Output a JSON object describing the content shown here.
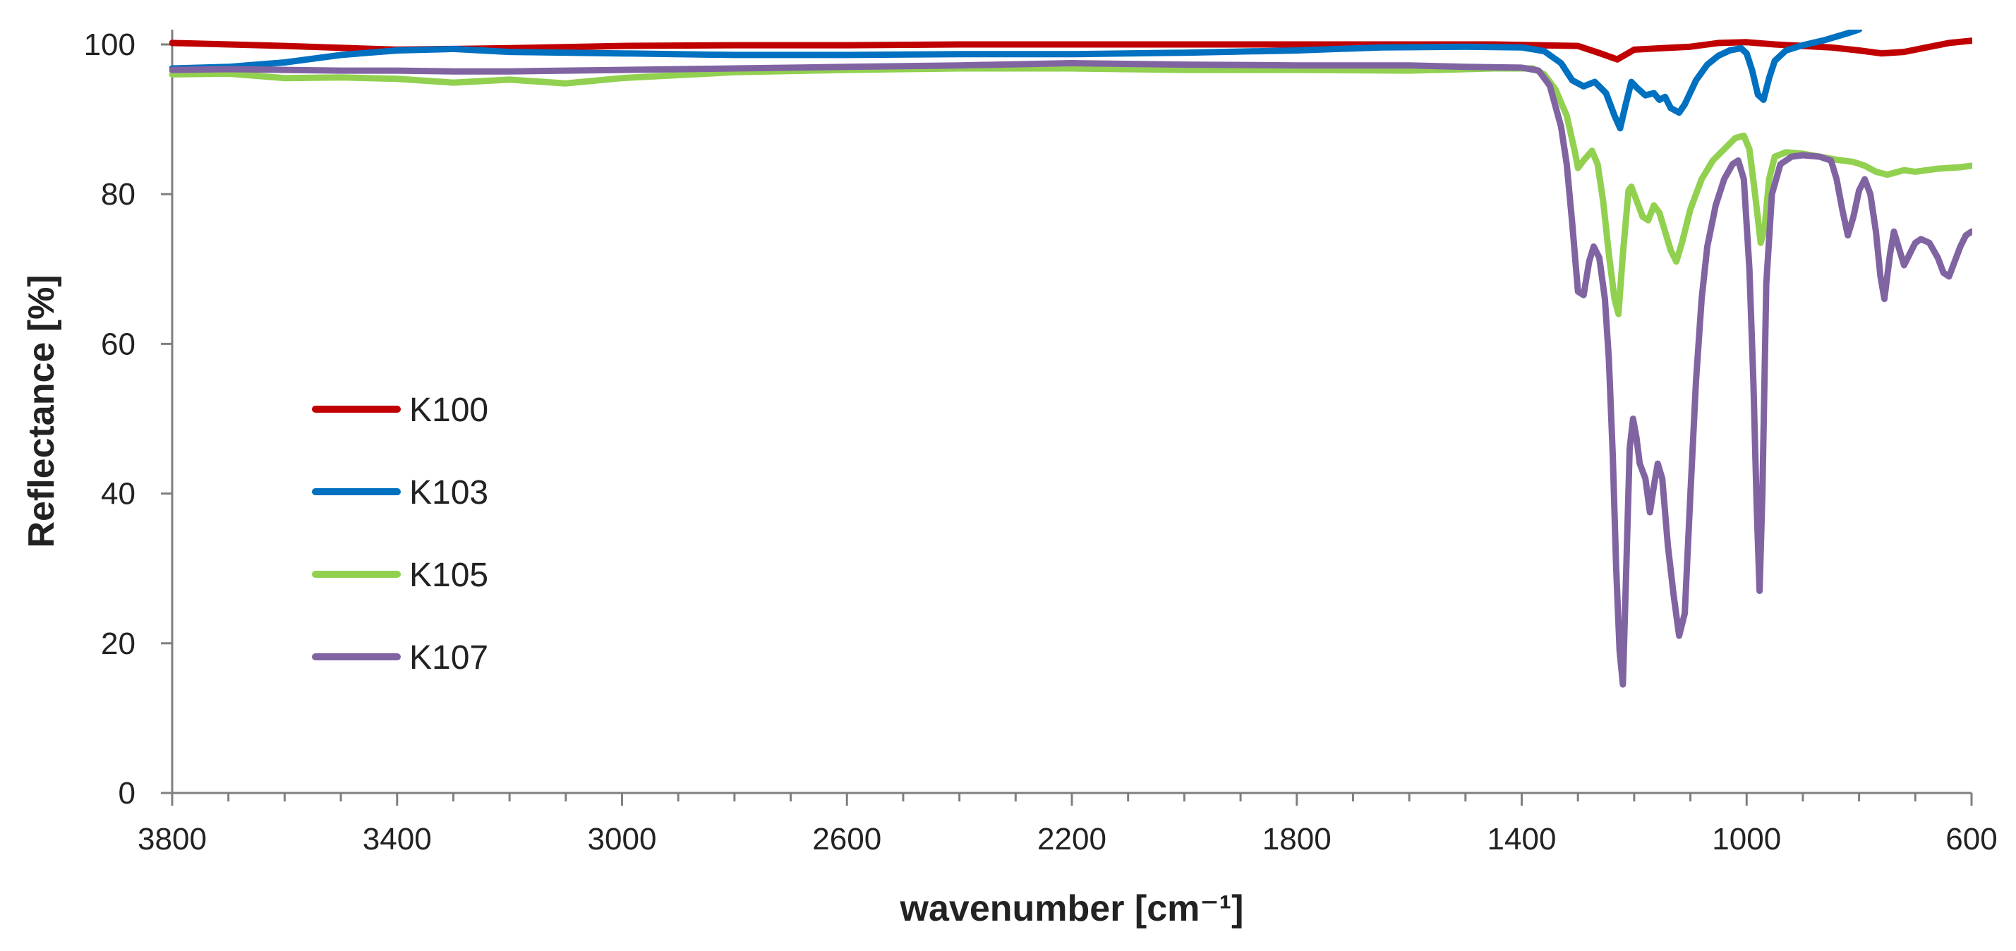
{
  "chart_data": {
    "type": "line",
    "xlabel": "wavenumber [cm⁻¹]",
    "ylabel": "Reflectance [%]",
    "xlim": [
      3800,
      600
    ],
    "ylim": [
      0,
      100
    ],
    "x_reversed": true,
    "x_ticks": [
      3800,
      3400,
      3000,
      2600,
      2200,
      1800,
      1400,
      1000,
      600
    ],
    "y_ticks": [
      0,
      20,
      40,
      60,
      80,
      100
    ],
    "x_tick_labels": [
      "3800",
      "3400",
      "3000",
      "2600",
      "2200",
      "1800",
      "1400",
      "1000",
      "600"
    ],
    "y_tick_labels": [
      "0",
      "20",
      "40",
      "60",
      "80",
      "100"
    ],
    "grid": false,
    "legend_position": "left",
    "series": [
      {
        "name": "K100",
        "color": "#C00000",
        "points": [
          [
            3800,
            100.2
          ],
          [
            3600,
            99.8
          ],
          [
            3400,
            99.3
          ],
          [
            3200,
            99.5
          ],
          [
            3000,
            99.8
          ],
          [
            2800,
            99.9
          ],
          [
            2600,
            99.9
          ],
          [
            2400,
            100.0
          ],
          [
            2200,
            100.0
          ],
          [
            2000,
            100.0
          ],
          [
            1800,
            100.0
          ],
          [
            1600,
            100.0
          ],
          [
            1450,
            100.0
          ],
          [
            1300,
            99.8
          ],
          [
            1260,
            98.8
          ],
          [
            1230,
            98.0
          ],
          [
            1200,
            99.3
          ],
          [
            1150,
            99.5
          ],
          [
            1100,
            99.7
          ],
          [
            1050,
            100.2
          ],
          [
            1000,
            100.3
          ],
          [
            950,
            100.0
          ],
          [
            900,
            99.8
          ],
          [
            850,
            99.6
          ],
          [
            800,
            99.2
          ],
          [
            760,
            98.8
          ],
          [
            720,
            99.0
          ],
          [
            680,
            99.6
          ],
          [
            640,
            100.2
          ],
          [
            600,
            100.5
          ]
        ]
      },
      {
        "name": "K103",
        "color": "#0070C0",
        "points": [
          [
            3800,
            96.8
          ],
          [
            3700,
            97.0
          ],
          [
            3600,
            97.6
          ],
          [
            3500,
            98.6
          ],
          [
            3400,
            99.2
          ],
          [
            3300,
            99.4
          ],
          [
            3200,
            99.0
          ],
          [
            3000,
            98.8
          ],
          [
            2800,
            98.6
          ],
          [
            2600,
            98.6
          ],
          [
            2400,
            98.7
          ],
          [
            2200,
            98.7
          ],
          [
            2000,
            98.9
          ],
          [
            1800,
            99.2
          ],
          [
            1650,
            99.6
          ],
          [
            1500,
            99.7
          ],
          [
            1400,
            99.6
          ],
          [
            1360,
            99.1
          ],
          [
            1330,
            97.5
          ],
          [
            1310,
            95.2
          ],
          [
            1290,
            94.4
          ],
          [
            1270,
            95.0
          ],
          [
            1250,
            93.5
          ],
          [
            1235,
            90.5
          ],
          [
            1225,
            88.8
          ],
          [
            1215,
            92.0
          ],
          [
            1205,
            95.0
          ],
          [
            1195,
            94.2
          ],
          [
            1180,
            93.2
          ],
          [
            1165,
            93.5
          ],
          [
            1155,
            92.6
          ],
          [
            1145,
            93.0
          ],
          [
            1135,
            91.5
          ],
          [
            1120,
            90.9
          ],
          [
            1110,
            92.0
          ],
          [
            1090,
            95.2
          ],
          [
            1070,
            97.3
          ],
          [
            1050,
            98.5
          ],
          [
            1030,
            99.2
          ],
          [
            1010,
            99.5
          ],
          [
            1000,
            98.8
          ],
          [
            990,
            96.5
          ],
          [
            980,
            93.3
          ],
          [
            970,
            92.6
          ],
          [
            960,
            95.5
          ],
          [
            950,
            97.8
          ],
          [
            930,
            99.2
          ],
          [
            900,
            99.9
          ],
          [
            860,
            100.6
          ],
          [
            820,
            101.5
          ],
          [
            800,
            102.0
          ]
        ]
      },
      {
        "name": "K105",
        "color": "#92D050",
        "points": [
          [
            3800,
            96.0
          ],
          [
            3700,
            96.1
          ],
          [
            3600,
            95.5
          ],
          [
            3500,
            95.6
          ],
          [
            3400,
            95.4
          ],
          [
            3300,
            94.9
          ],
          [
            3200,
            95.3
          ],
          [
            3100,
            94.8
          ],
          [
            3000,
            95.5
          ],
          [
            2800,
            96.3
          ],
          [
            2600,
            96.6
          ],
          [
            2400,
            96.8
          ],
          [
            2200,
            96.8
          ],
          [
            2000,
            96.6
          ],
          [
            1800,
            96.6
          ],
          [
            1600,
            96.5
          ],
          [
            1450,
            96.8
          ],
          [
            1380,
            96.8
          ],
          [
            1360,
            96.0
          ],
          [
            1340,
            94.0
          ],
          [
            1320,
            90.5
          ],
          [
            1305,
            85.5
          ],
          [
            1300,
            83.5
          ],
          [
            1290,
            84.5
          ],
          [
            1275,
            85.8
          ],
          [
            1265,
            84.0
          ],
          [
            1255,
            79.0
          ],
          [
            1245,
            72.0
          ],
          [
            1235,
            66.0
          ],
          [
            1228,
            64.0
          ],
          [
            1220,
            72.0
          ],
          [
            1210,
            80.5
          ],
          [
            1205,
            81.0
          ],
          [
            1195,
            79.0
          ],
          [
            1185,
            77.0
          ],
          [
            1175,
            76.5
          ],
          [
            1165,
            78.5
          ],
          [
            1155,
            77.5
          ],
          [
            1145,
            75.0
          ],
          [
            1135,
            72.5
          ],
          [
            1125,
            71.0
          ],
          [
            1115,
            73.5
          ],
          [
            1100,
            78.0
          ],
          [
            1080,
            82.0
          ],
          [
            1060,
            84.5
          ],
          [
            1040,
            86.0
          ],
          [
            1020,
            87.5
          ],
          [
            1005,
            87.8
          ],
          [
            995,
            86.0
          ],
          [
            985,
            80.0
          ],
          [
            975,
            73.5
          ],
          [
            968,
            75.5
          ],
          [
            960,
            82.0
          ],
          [
            950,
            85.0
          ],
          [
            930,
            85.6
          ],
          [
            900,
            85.4
          ],
          [
            870,
            85.0
          ],
          [
            840,
            84.6
          ],
          [
            810,
            84.3
          ],
          [
            790,
            83.8
          ],
          [
            770,
            83.0
          ],
          [
            750,
            82.6
          ],
          [
            720,
            83.2
          ],
          [
            700,
            83.0
          ],
          [
            660,
            83.4
          ],
          [
            620,
            83.6
          ],
          [
            600,
            83.8
          ]
        ]
      },
      {
        "name": "K107",
        "color": "#8064A2",
        "points": [
          [
            3800,
            96.6
          ],
          [
            3700,
            96.7
          ],
          [
            3600,
            96.6
          ],
          [
            3500,
            96.5
          ],
          [
            3400,
            96.5
          ],
          [
            3300,
            96.4
          ],
          [
            3200,
            96.4
          ],
          [
            3000,
            96.6
          ],
          [
            2800,
            96.8
          ],
          [
            2600,
            97.0
          ],
          [
            2400,
            97.2
          ],
          [
            2200,
            97.5
          ],
          [
            2000,
            97.3
          ],
          [
            1800,
            97.2
          ],
          [
            1600,
            97.2
          ],
          [
            1500,
            97.0
          ],
          [
            1400,
            96.9
          ],
          [
            1370,
            96.5
          ],
          [
            1350,
            94.5
          ],
          [
            1330,
            89.0
          ],
          [
            1320,
            84.0
          ],
          [
            1310,
            76.0
          ],
          [
            1300,
            67.0
          ],
          [
            1290,
            66.5
          ],
          [
            1280,
            71.0
          ],
          [
            1272,
            73.0
          ],
          [
            1262,
            71.5
          ],
          [
            1252,
            66.0
          ],
          [
            1245,
            58.0
          ],
          [
            1238,
            45.0
          ],
          [
            1232,
            30.0
          ],
          [
            1226,
            19.0
          ],
          [
            1220,
            14.5
          ],
          [
            1214,
            30.0
          ],
          [
            1208,
            46.0
          ],
          [
            1202,
            50.0
          ],
          [
            1196,
            47.5
          ],
          [
            1190,
            44.0
          ],
          [
            1180,
            42.0
          ],
          [
            1172,
            37.5
          ],
          [
            1165,
            41.0
          ],
          [
            1158,
            44.0
          ],
          [
            1150,
            42.0
          ],
          [
            1140,
            33.0
          ],
          [
            1130,
            26.5
          ],
          [
            1120,
            21.0
          ],
          [
            1110,
            24.0
          ],
          [
            1100,
            40.0
          ],
          [
            1090,
            55.0
          ],
          [
            1080,
            66.0
          ],
          [
            1070,
            73.0
          ],
          [
            1055,
            78.5
          ],
          [
            1040,
            82.0
          ],
          [
            1025,
            84.0
          ],
          [
            1015,
            84.5
          ],
          [
            1005,
            82.0
          ],
          [
            995,
            70.0
          ],
          [
            988,
            55.0
          ],
          [
            982,
            38.0
          ],
          [
            977,
            27.0
          ],
          [
            972,
            40.0
          ],
          [
            965,
            68.0
          ],
          [
            955,
            80.0
          ],
          [
            940,
            84.0
          ],
          [
            920,
            85.0
          ],
          [
            900,
            85.2
          ],
          [
            870,
            85.0
          ],
          [
            850,
            84.5
          ],
          [
            840,
            82.0
          ],
          [
            830,
            78.0
          ],
          [
            820,
            74.5
          ],
          [
            810,
            77.0
          ],
          [
            800,
            80.5
          ],
          [
            790,
            82.0
          ],
          [
            780,
            80.0
          ],
          [
            770,
            75.0
          ],
          [
            762,
            69.0
          ],
          [
            755,
            66.0
          ],
          [
            745,
            72.0
          ],
          [
            738,
            75.0
          ],
          [
            730,
            73.0
          ],
          [
            720,
            70.5
          ],
          [
            710,
            72.0
          ],
          [
            700,
            73.5
          ],
          [
            690,
            74.0
          ],
          [
            675,
            73.5
          ],
          [
            660,
            71.5
          ],
          [
            650,
            69.5
          ],
          [
            640,
            69.0
          ],
          [
            630,
            71.0
          ],
          [
            620,
            73.0
          ],
          [
            610,
            74.5
          ],
          [
            600,
            75.0
          ]
        ]
      }
    ]
  }
}
